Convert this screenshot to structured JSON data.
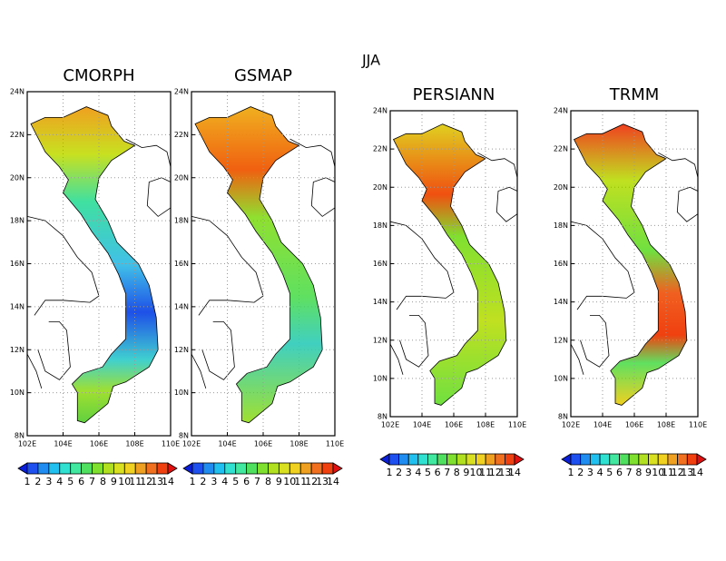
{
  "title": "JJA",
  "panels": [
    {
      "title": "CMORPH",
      "xticks": [
        "102E",
        "104E",
        "106E",
        "108E",
        "110E"
      ],
      "yticks": [
        "8N",
        "10N",
        "12N",
        "14N",
        "16N",
        "18N",
        "20N",
        "22N",
        "24N"
      ]
    },
    {
      "title": "GSMAP",
      "xticks": [
        "102E",
        "104E",
        "106E",
        "108E",
        "110E"
      ],
      "yticks": [
        "8N",
        "10N",
        "12N",
        "14N",
        "16N",
        "18N",
        "20N",
        "22N",
        "24N"
      ]
    },
    {
      "title": "PERSIANN",
      "xticks": [
        "102E",
        "104E",
        "106E",
        "108E",
        "110E"
      ],
      "yticks": [
        "8N",
        "10N",
        "12N",
        "14N",
        "16N",
        "18N",
        "20N",
        "22N",
        "24N"
      ]
    },
    {
      "title": "TRMM",
      "xticks": [
        "102E",
        "104E",
        "106E",
        "108E",
        "110E"
      ],
      "yticks": [
        "8N",
        "10N",
        "12N",
        "14N",
        "16N",
        "18N",
        "20N",
        "22N",
        "24N"
      ]
    }
  ],
  "colorbar_labels": [
    "1",
    "2",
    "3",
    "4",
    "5",
    "6",
    "7",
    "8",
    "9",
    "10",
    "11",
    "12",
    "13",
    "14"
  ]
}
